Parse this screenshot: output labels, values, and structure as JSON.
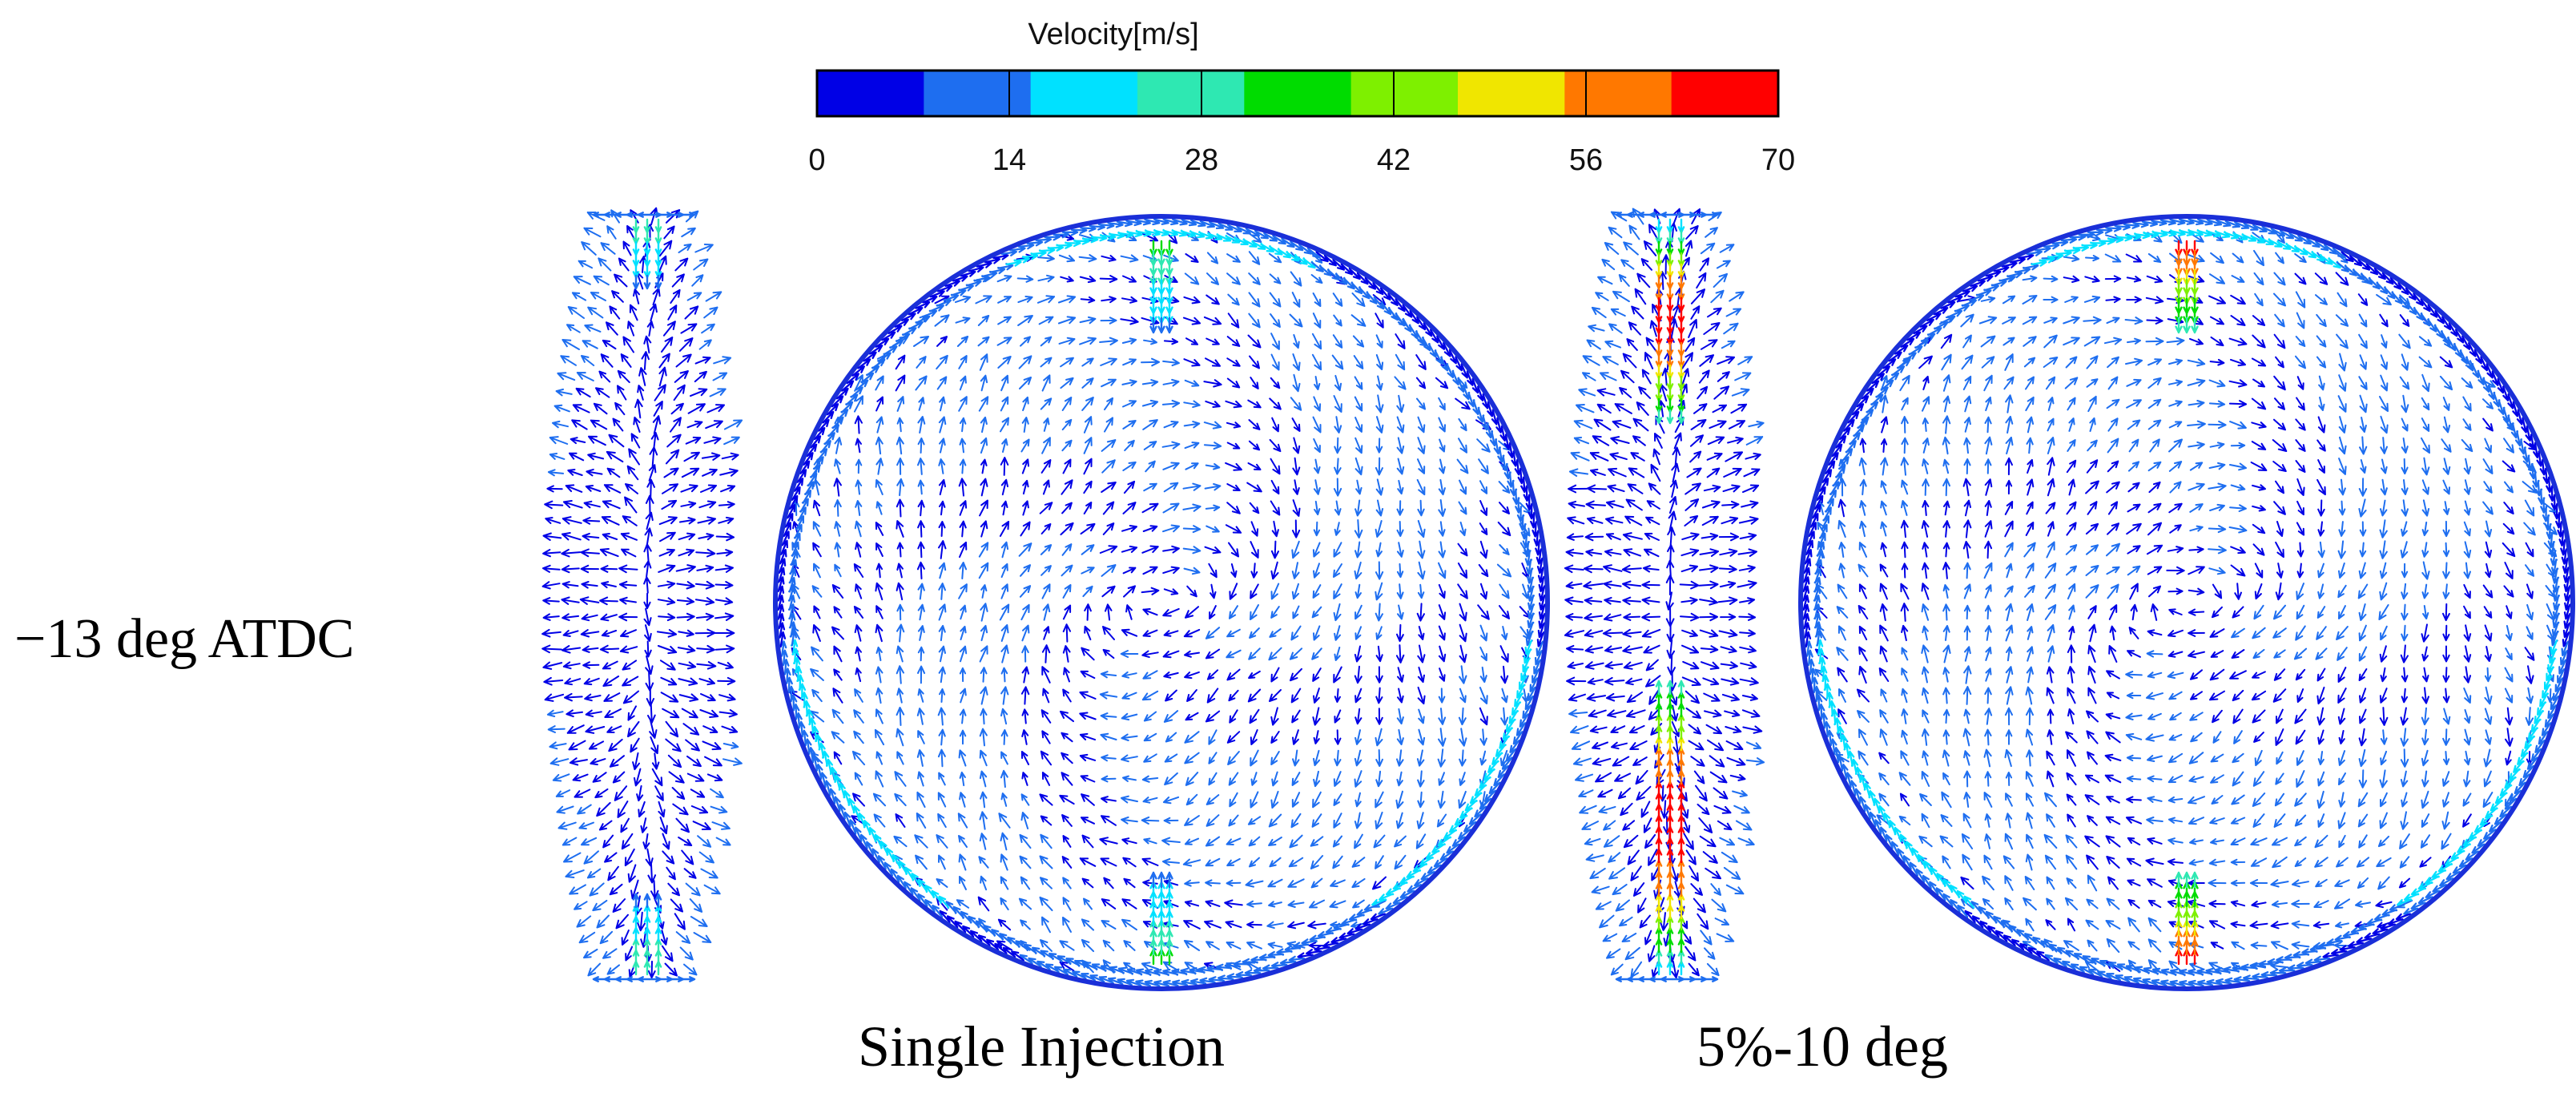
{
  "colorbar": {
    "title": "Velocity[m/s]",
    "ticks": [
      "0",
      "14",
      "28",
      "42",
      "56",
      "70"
    ],
    "range": [
      0,
      70
    ],
    "colors": [
      "#0000e6",
      "#1e6ef0",
      "#00e1ff",
      "#2ee8b2",
      "#00dc00",
      "#7ef000",
      "#f0e600",
      "#ff7800",
      "#ff0000"
    ]
  },
  "row_label": "−13 deg ATDC",
  "cases": [
    {
      "label": "Single Injection",
      "side_jet_peak": 30,
      "circle_jet_peak": 32
    },
    {
      "label": "5%-10 deg",
      "side_jet_peak": 66,
      "circle_jet_peak": 64
    }
  ],
  "background_color": "#ffffff"
}
